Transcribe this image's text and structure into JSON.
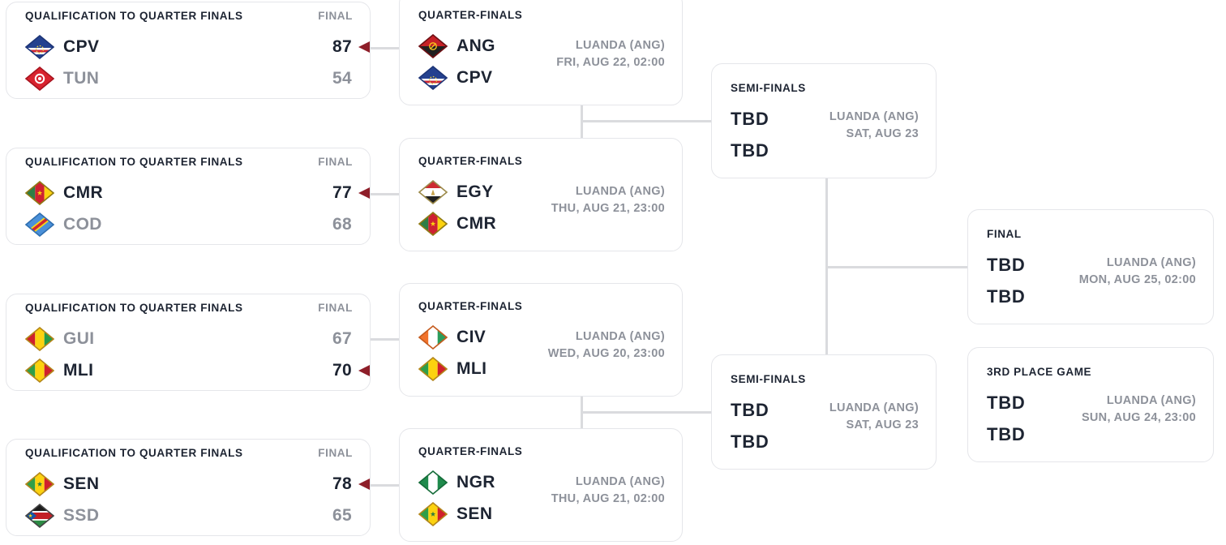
{
  "colors": {
    "page_bg": "#ffffff",
    "card_bg": "#ffffff",
    "card_border": "#e5e6ea",
    "connector": "#dadbde",
    "text_dark": "#1d2432",
    "text_gray": "#8d919a",
    "winner_arrow": "#8e1e29"
  },
  "bracket": {
    "cards": [
      {
        "id": "q1",
        "type": "result",
        "title": "QUALIFICATION TO QUARTER FINALS",
        "status_label": "FINAL",
        "teams": [
          {
            "code": "CPV",
            "flag": "flag-cpv",
            "score": "87",
            "winner": true
          },
          {
            "code": "TUN",
            "flag": "flag-tun",
            "score": "54",
            "winner": false
          }
        ]
      },
      {
        "id": "q2",
        "type": "result",
        "title": "QUALIFICATION TO QUARTER FINALS",
        "status_label": "FINAL",
        "teams": [
          {
            "code": "CMR",
            "flag": "flag-cmr",
            "score": "77",
            "winner": true
          },
          {
            "code": "COD",
            "flag": "flag-cod",
            "score": "68",
            "winner": false
          }
        ]
      },
      {
        "id": "q3",
        "type": "result",
        "title": "QUALIFICATION TO QUARTER FINALS",
        "status_label": "FINAL",
        "teams": [
          {
            "code": "GUI",
            "flag": "flag-gui",
            "score": "67",
            "winner": false
          },
          {
            "code": "MLI",
            "flag": "flag-mli",
            "score": "70",
            "winner": true
          }
        ]
      },
      {
        "id": "q4",
        "type": "result",
        "title": "QUALIFICATION TO QUARTER FINALS",
        "status_label": "FINAL",
        "teams": [
          {
            "code": "SEN",
            "flag": "flag-sen",
            "score": "78",
            "winner": true
          },
          {
            "code": "SSD",
            "flag": "flag-ssd",
            "score": "65",
            "winner": false
          }
        ]
      },
      {
        "id": "qf1",
        "type": "fixture",
        "title": "QUARTER-FINALS",
        "venue": "LUANDA (ANG)",
        "datetime": "FRI, AUG 22, 02:00",
        "teams": [
          {
            "code": "ANG",
            "flag": "flag-ang"
          },
          {
            "code": "CPV",
            "flag": "flag-cpv"
          }
        ]
      },
      {
        "id": "qf2",
        "type": "fixture",
        "title": "QUARTER-FINALS",
        "venue": "LUANDA (ANG)",
        "datetime": "THU, AUG 21, 23:00",
        "teams": [
          {
            "code": "EGY",
            "flag": "flag-egy"
          },
          {
            "code": "CMR",
            "flag": "flag-cmr"
          }
        ]
      },
      {
        "id": "qf3",
        "type": "fixture",
        "title": "QUARTER-FINALS",
        "venue": "LUANDA (ANG)",
        "datetime": "WED, AUG 20, 23:00",
        "teams": [
          {
            "code": "CIV",
            "flag": "flag-civ"
          },
          {
            "code": "MLI",
            "flag": "flag-mli"
          }
        ]
      },
      {
        "id": "qf4",
        "type": "fixture",
        "title": "QUARTER-FINALS",
        "venue": "LUANDA (ANG)",
        "datetime": "THU, AUG 21, 02:00",
        "teams": [
          {
            "code": "NGR",
            "flag": "flag-ngr"
          },
          {
            "code": "SEN",
            "flag": "flag-sen"
          }
        ]
      },
      {
        "id": "sf1",
        "type": "tbd",
        "title": "SEMI-FINALS",
        "venue": "LUANDA (ANG)",
        "datetime": "SAT, AUG 23",
        "teams": [
          {
            "code": "TBD"
          },
          {
            "code": "TBD"
          }
        ]
      },
      {
        "id": "sf2",
        "type": "tbd",
        "title": "SEMI-FINALS",
        "venue": "LUANDA (ANG)",
        "datetime": "SAT, AUG 23",
        "teams": [
          {
            "code": "TBD"
          },
          {
            "code": "TBD"
          }
        ]
      },
      {
        "id": "final",
        "type": "tbd",
        "title": "FINAL",
        "venue": "LUANDA (ANG)",
        "datetime": "MON, AUG 25, 02:00",
        "teams": [
          {
            "code": "TBD"
          },
          {
            "code": "TBD"
          }
        ]
      },
      {
        "id": "third",
        "type": "tbd",
        "title": "3RD PLACE GAME",
        "venue": "LUANDA (ANG)",
        "datetime": "SUN, AUG 24, 23:00",
        "teams": [
          {
            "code": "TBD"
          },
          {
            "code": "TBD"
          }
        ]
      }
    ]
  }
}
